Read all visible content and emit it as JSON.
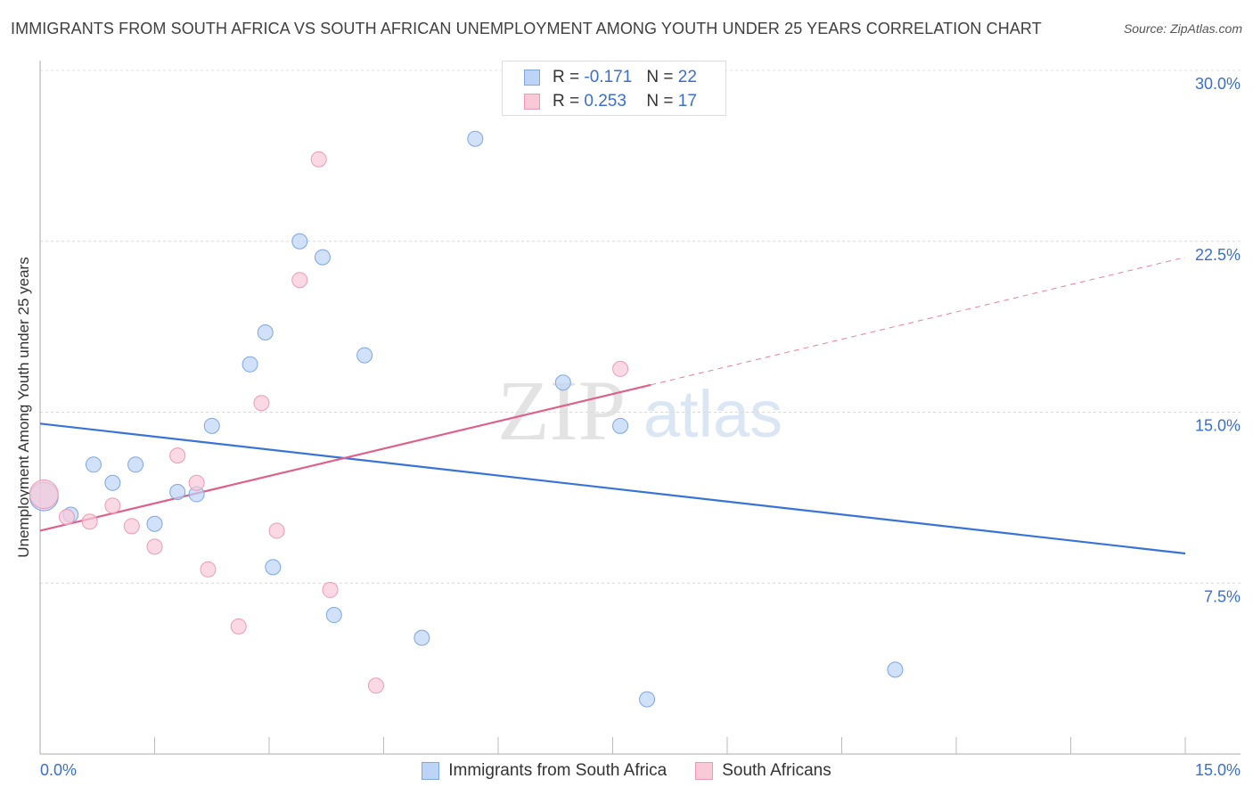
{
  "title": "IMMIGRANTS FROM SOUTH AFRICA VS SOUTH AFRICAN UNEMPLOYMENT AMONG YOUTH UNDER 25 YEARS CORRELATION CHART",
  "source": "Source: ZipAtlas.com",
  "watermark": {
    "zip": "ZIP",
    "atlas": "atlas"
  },
  "legend": {
    "rows": [
      {
        "r_label": "R =",
        "r_value": "-0.171",
        "n_label": "N =",
        "n_value": "22"
      },
      {
        "r_label": "R =",
        "r_value": "0.253",
        "n_label": "N =",
        "n_value": "17"
      }
    ]
  },
  "chart_data": {
    "type": "scatter",
    "title": "IMMIGRANTS FROM SOUTH AFRICA VS SOUTH AFRICAN UNEMPLOYMENT AMONG YOUTH UNDER 25 YEARS CORRELATION CHART",
    "xlabel": "",
    "ylabel": "Unemployment Among Youth under 25 years",
    "xlim": [
      0,
      15
    ],
    "ylim": [
      0,
      30
    ],
    "x_tick_labels": [
      "0.0%",
      "15.0%"
    ],
    "y_ticks": [
      7.5,
      15,
      22.5,
      30
    ],
    "y_tick_labels": [
      "7.5%",
      "15.0%",
      "22.5%",
      "30.0%"
    ],
    "colors": {
      "blue": "#3a73d8",
      "pink": "#e0608c",
      "blue_fill": "#bcd4f6",
      "pink_fill": "#f9c9d8",
      "tick_text": "#3a6fcf"
    },
    "series": [
      {
        "name": "Immigrants from South Africa",
        "color": "#3a73d8",
        "points": [
          {
            "x": 0.05,
            "y": 11.3,
            "big": true
          },
          {
            "x": 0.4,
            "y": 10.5
          },
          {
            "x": 0.7,
            "y": 12.7
          },
          {
            "x": 0.95,
            "y": 11.9
          },
          {
            "x": 1.25,
            "y": 12.7
          },
          {
            "x": 1.5,
            "y": 10.1
          },
          {
            "x": 1.8,
            "y": 11.5
          },
          {
            "x": 2.05,
            "y": 11.4
          },
          {
            "x": 2.25,
            "y": 14.4
          },
          {
            "x": 2.75,
            "y": 17.1
          },
          {
            "x": 2.95,
            "y": 18.5
          },
          {
            "x": 3.05,
            "y": 8.2
          },
          {
            "x": 3.4,
            "y": 22.5
          },
          {
            "x": 3.7,
            "y": 21.8
          },
          {
            "x": 3.85,
            "y": 6.1
          },
          {
            "x": 4.25,
            "y": 17.5
          },
          {
            "x": 5.0,
            "y": 5.1
          },
          {
            "x": 5.7,
            "y": 27.0
          },
          {
            "x": 6.85,
            "y": 16.3
          },
          {
            "x": 7.6,
            "y": 14.4
          },
          {
            "x": 7.95,
            "y": 2.4
          },
          {
            "x": 11.2,
            "y": 3.7
          }
        ],
        "trend": {
          "x1": 0,
          "y1": 14.5,
          "x2": 15,
          "y2": 8.8
        }
      },
      {
        "name": "South Africans",
        "color": "#e0608c",
        "points": [
          {
            "x": 0.05,
            "y": 11.4,
            "big": true
          },
          {
            "x": 0.35,
            "y": 10.4
          },
          {
            "x": 0.65,
            "y": 10.2
          },
          {
            "x": 0.95,
            "y": 10.9
          },
          {
            "x": 1.2,
            "y": 10.0
          },
          {
            "x": 1.5,
            "y": 9.1
          },
          {
            "x": 1.8,
            "y": 13.1
          },
          {
            "x": 2.05,
            "y": 11.9
          },
          {
            "x": 2.2,
            "y": 8.1
          },
          {
            "x": 2.6,
            "y": 5.6
          },
          {
            "x": 2.9,
            "y": 15.4
          },
          {
            "x": 3.1,
            "y": 9.8
          },
          {
            "x": 3.4,
            "y": 20.8
          },
          {
            "x": 3.65,
            "y": 26.1
          },
          {
            "x": 3.8,
            "y": 7.2
          },
          {
            "x": 4.4,
            "y": 3.0
          },
          {
            "x": 7.6,
            "y": 16.9
          }
        ],
        "trend": {
          "x1": 0,
          "y1": 9.8,
          "x2": 8.0,
          "y2": 16.2
        },
        "trend_dashed": {
          "x1": 8.0,
          "y1": 16.2,
          "x2": 15,
          "y2": 21.8
        }
      }
    ]
  }
}
